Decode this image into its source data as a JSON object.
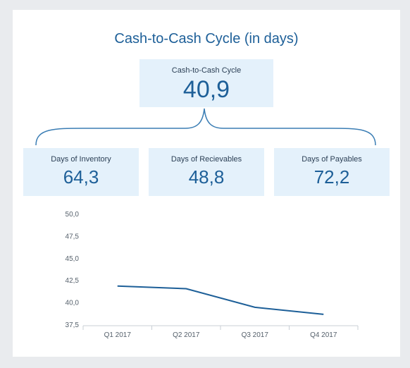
{
  "title": "Cash-to-Cash Cycle (in days)",
  "kpis": {
    "main": {
      "label": "Cash-to-Cash Cycle",
      "value": "40,9"
    },
    "inventory": {
      "label": "Days of Inventory",
      "value": "64,3"
    },
    "receivables": {
      "label": "Days of Recievables",
      "value": "48,8"
    },
    "payables": {
      "label": "Days of Payables",
      "value": "72,2"
    }
  },
  "colors": {
    "accent": "#1d5f98",
    "kpi_bg": "#e4f1fb",
    "line": "#1d5f98"
  },
  "chart_data": {
    "type": "line",
    "categories": [
      "Q1 2017",
      "Q2 2017",
      "Q3 2017",
      "Q4 2017"
    ],
    "series": [
      {
        "values": [
          41.9,
          41.6,
          39.5,
          38.7
        ]
      }
    ],
    "y_ticks": [
      "50,0",
      "47,5",
      "45,0",
      "42,5",
      "40,0",
      "37,5"
    ],
    "ylim": [
      37.5,
      50.0
    ],
    "grid": false
  }
}
